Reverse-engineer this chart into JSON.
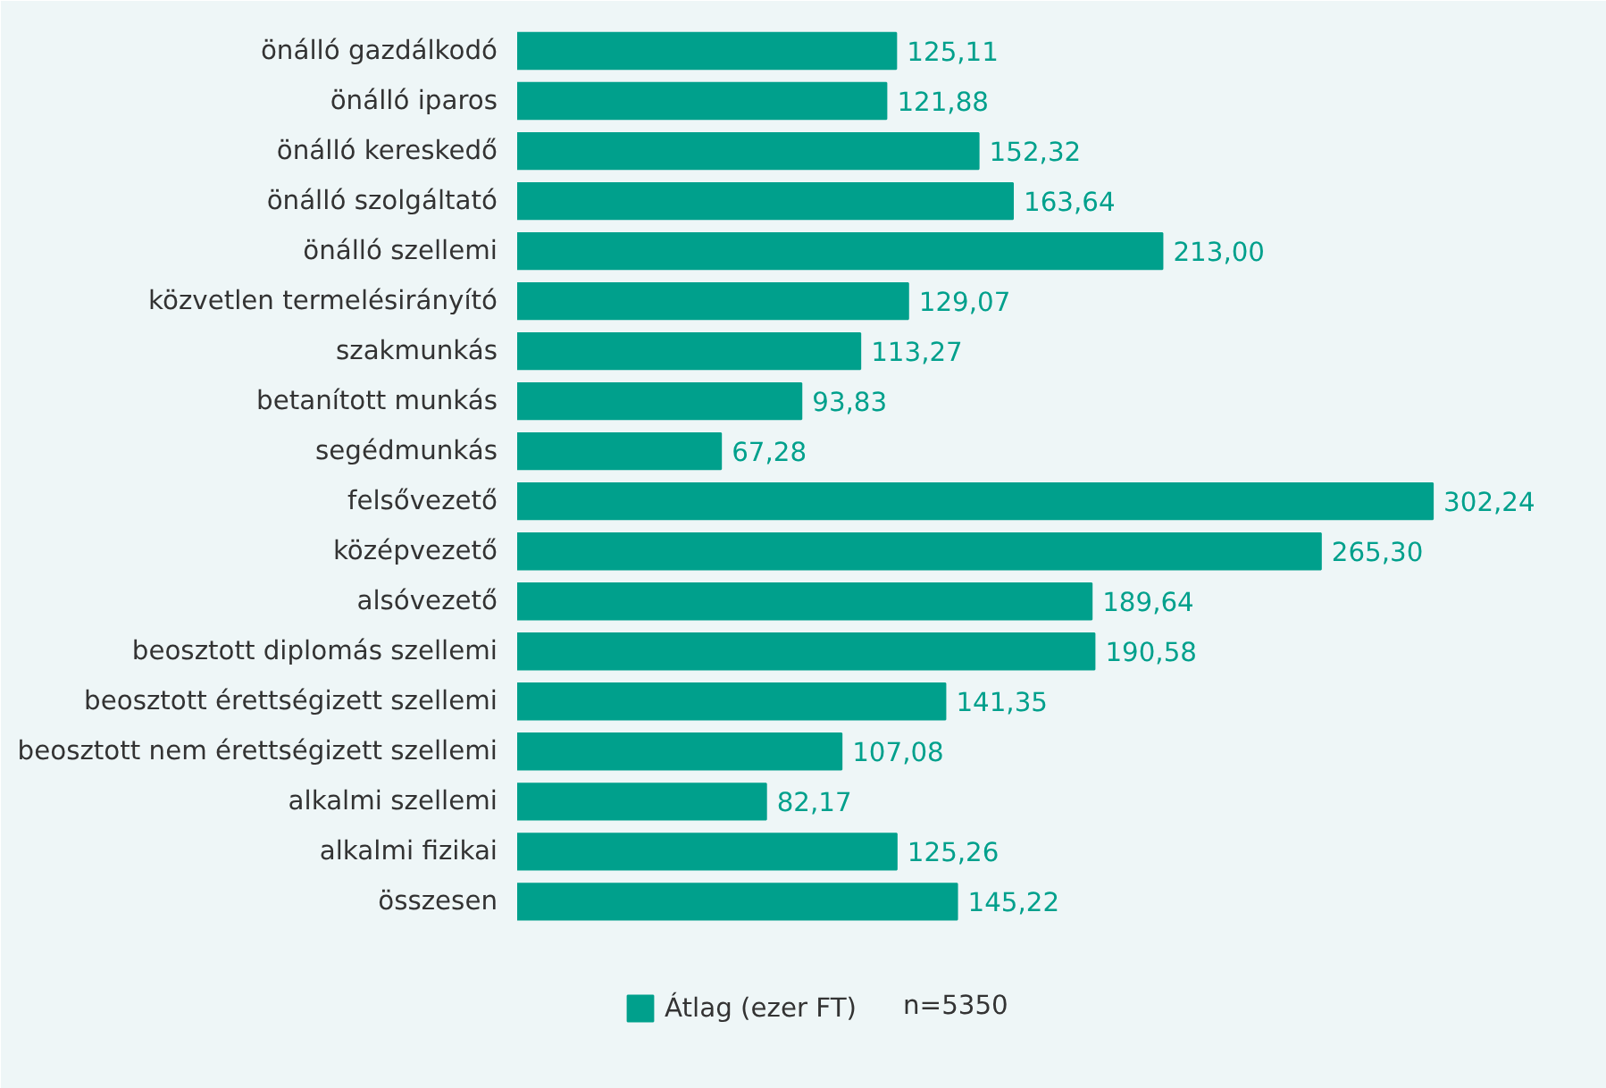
{
  "chart_data": {
    "type": "bar",
    "orientation": "horizontal",
    "categories": [
      "önálló gazdálkodó",
      "önálló iparos",
      "önálló kereskedő",
      "önálló szolgáltató",
      "önálló szellemi",
      "közvetlen termelésirányító",
      "szakmunkás",
      "betanított munkás",
      "segédmunkás",
      "felsővezető",
      "középvezető",
      "alsóvezető",
      "beosztott diplomás szellemi",
      "beosztott érettségizett szellemi",
      "beosztott nem érettségizett szellemi",
      "alkalmi szellemi",
      "alkalmi fizikai",
      "összesen"
    ],
    "series": [
      {
        "name": "Átlag (ezer FT)",
        "color": "#00a08c",
        "values": [
          125.11,
          121.88,
          152.32,
          163.64,
          213.0,
          129.07,
          113.27,
          93.83,
          67.28,
          302.24,
          265.3,
          189.64,
          190.58,
          141.35,
          107.08,
          82.17,
          125.26,
          145.22
        ],
        "value_labels": [
          "125,11",
          "121,88",
          "152,32",
          "163,64",
          "213,00",
          "129,07",
          "113,27",
          "93,83",
          "67,28",
          "302,24",
          "265,30",
          "189,64",
          "190,58",
          "141,35",
          "107,08",
          "82,17",
          "125,26",
          "145,22"
        ]
      }
    ],
    "legend": "bottom",
    "grid": false,
    "annotations": [
      "n=5350"
    ]
  }
}
